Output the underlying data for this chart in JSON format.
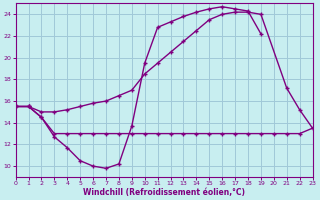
{
  "xlabel": "Windchill (Refroidissement éolien,°C)",
  "bg_color": "#c8eef0",
  "grid_color": "#a0c8d8",
  "line_color": "#800080",
  "xmin": 0,
  "xmax": 23,
  "ymin": 9,
  "ymax": 25,
  "yticks": [
    10,
    12,
    14,
    16,
    18,
    20,
    22,
    24
  ],
  "xticks": [
    0,
    1,
    2,
    3,
    4,
    5,
    6,
    7,
    8,
    9,
    10,
    11,
    12,
    13,
    14,
    15,
    16,
    17,
    18,
    19,
    20,
    21,
    22,
    23
  ],
  "line1_x": [
    0,
    1,
    2,
    3,
    4,
    5,
    6,
    7,
    8,
    9,
    10,
    11,
    12,
    13,
    14,
    15,
    16,
    17,
    18,
    19,
    20,
    21,
    22,
    23
  ],
  "line1_y": [
    15.5,
    15.5,
    14.5,
    13.0,
    13.0,
    13.0,
    13.0,
    13.0,
    13.0,
    13.0,
    13.0,
    13.0,
    13.0,
    13.0,
    13.0,
    13.0,
    13.0,
    13.0,
    13.0,
    13.0,
    13.0,
    13.0,
    13.0,
    13.5
  ],
  "line2_x": [
    0,
    1,
    2,
    3,
    4,
    5,
    6,
    7,
    8,
    9,
    10,
    11,
    12,
    13,
    14,
    15,
    16,
    17,
    18,
    19
  ],
  "line2_y": [
    15.5,
    15.5,
    14.5,
    12.7,
    11.7,
    10.5,
    10.0,
    9.8,
    10.2,
    13.7,
    19.5,
    22.8,
    23.3,
    23.8,
    24.2,
    24.5,
    24.7,
    24.5,
    24.3,
    22.2
  ],
  "line3_x": [
    0,
    1,
    2,
    3,
    4,
    5,
    6,
    7,
    8,
    9,
    10,
    11,
    12,
    13,
    14,
    15,
    16,
    17,
    18,
    19,
    21,
    22,
    23
  ],
  "line3_y": [
    15.5,
    15.5,
    15.0,
    15.0,
    15.2,
    15.5,
    15.8,
    16.0,
    16.5,
    17.0,
    18.5,
    19.5,
    20.5,
    21.5,
    22.5,
    23.5,
    24.0,
    24.2,
    24.2,
    24.0,
    17.2,
    15.2,
    13.5
  ]
}
